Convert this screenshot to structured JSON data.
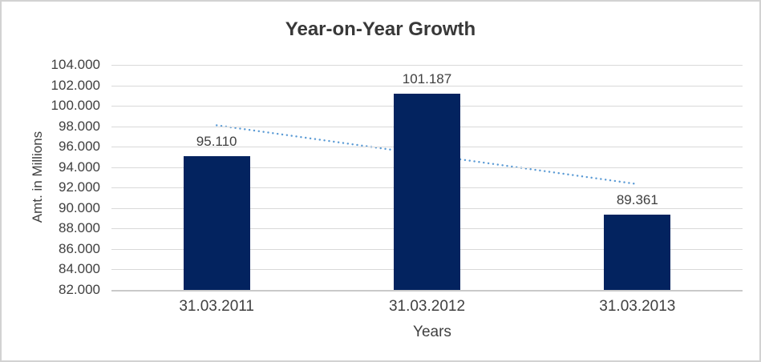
{
  "chart_data": {
    "type": "bar",
    "title": "Year-on-Year Growth",
    "xlabel": "Years",
    "ylabel": "Amt. in Millions",
    "categories": [
      "31.03.2011",
      "31.03.2012",
      "31.03.2013"
    ],
    "values": [
      95110,
      101187,
      89361
    ],
    "value_labels": [
      "95.110",
      "101.187",
      "89.361"
    ],
    "yticks": [
      "104.000",
      "102.000",
      "100.000",
      "98.000",
      "96.000",
      "94.000",
      "92.000",
      "90.000",
      "88.000",
      "86.000",
      "84.000",
      "82.000"
    ],
    "ylim": [
      82000,
      104000
    ],
    "grid": "horizontal",
    "legend": "none",
    "bar_color": "#03235f",
    "gridline_color": "#d9d9d9",
    "axis_line_color": "#c9c9c9",
    "text_color": "#404040",
    "title_color": "#383838",
    "trendline": {
      "style": "dotted",
      "color": "#5b9bd5",
      "start_value": 98094,
      "end_value": 92345
    }
  }
}
